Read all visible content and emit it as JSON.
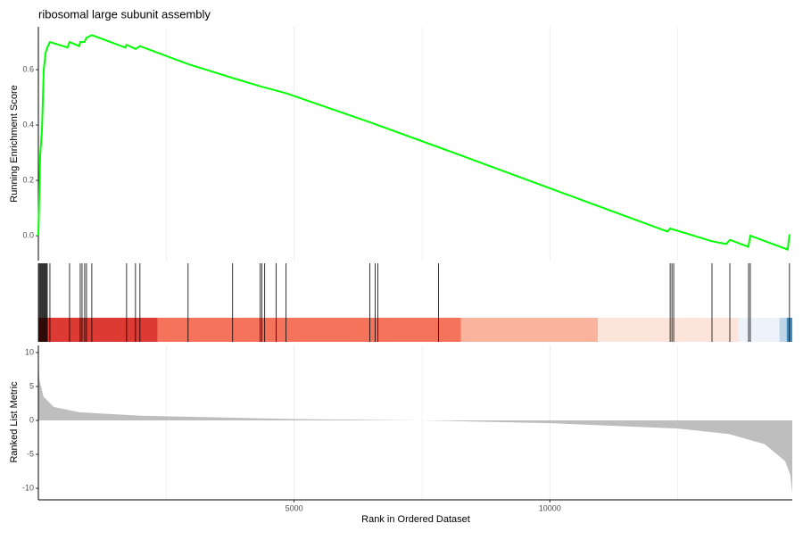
{
  "chart_data": [
    {
      "type": "line",
      "title": "ribosomal large subunit assembly",
      "ylabel": "Running Enrichment Score",
      "xlim": [
        0,
        14740
      ],
      "ylim": [
        -0.09,
        0.755
      ],
      "yticks": [
        {
          "value": 0,
          "label": "0.0"
        },
        0.2,
        0.4,
        0.6
      ],
      "x_major_grid": [
        5000,
        10000
      ],
      "x_minor_grid": [
        2500,
        7500,
        12500
      ],
      "series": [
        {
          "color": "#00ff00",
          "x": [
            0,
            35,
            70,
            105,
            140,
            174,
            226,
            570,
            610,
            800,
            819,
            900,
            941,
            1045,
            1700,
            1725,
            1900,
            1986,
            2927,
            3798,
            4338,
            4843,
            6480,
            7822,
            12300,
            12352,
            13170,
            13450,
            13519,
            13880,
            13919,
            14650,
            14685
          ],
          "values": [
            0,
            0.29,
            0.38,
            0.6,
            0.66,
            0.68,
            0.7,
            0.68,
            0.7,
            0.685,
            0.7,
            0.7,
            0.715,
            0.725,
            0.68,
            0.69,
            0.675,
            0.685,
            0.62,
            0.57,
            0.54,
            0.515,
            0.41,
            0.32,
            0.015,
            0.026,
            -0.02,
            -0.03,
            -0.015,
            -0.04,
            0,
            -0.05,
            0.005
          ]
        }
      ]
    },
    {
      "type": "rug",
      "xlim": [
        0,
        14740
      ],
      "hits": [
        0,
        17,
        35,
        52,
        70,
        87,
        105,
        122,
        139,
        157,
        174,
        226,
        610,
        819,
        854,
        906,
        941,
        1045,
        1725,
        1899,
        1986,
        2927,
        3798,
        4338,
        4372,
        4425,
        4651,
        4843,
        6480,
        6585,
        6637,
        7822,
        12352,
        12387,
        12421,
        13170,
        13519,
        13885,
        13919,
        14685
      ],
      "color_bar": {
        "breaks": [
          0,
          2330,
          8260,
          10940,
          13690,
          14490,
          14630,
          14740
        ],
        "colors": [
          "#de3a34",
          "#f5735a",
          "#fab39c",
          "#fde4da",
          "#eef3fb",
          "#bfd6e9",
          "#3f8ec4"
        ]
      }
    },
    {
      "type": "area",
      "ylabel": "Ranked List Metric",
      "xlabel": "Rank in Ordered Dataset",
      "xlim": [
        0,
        14740
      ],
      "ylim": [
        -11.7,
        11.05
      ],
      "yticks": [
        10,
        5,
        0,
        -5,
        -10
      ],
      "xticks": [
        5000,
        10000
      ],
      "color": "#bebebe",
      "x_major_grid": [
        5000,
        10000
      ],
      "x_minor_grid": [
        2500,
        7500,
        12500
      ],
      "x": [
        0,
        20,
        100,
        300,
        800,
        2000,
        5000,
        7500,
        10000,
        12500,
        13500,
        14200,
        14600,
        14700,
        14740
      ],
      "values": [
        9,
        6,
        3.5,
        2,
        1.2,
        0.7,
        0.2,
        0,
        -0.4,
        -1.2,
        -2,
        -3.5,
        -6,
        -8,
        -10.7
      ]
    }
  ]
}
